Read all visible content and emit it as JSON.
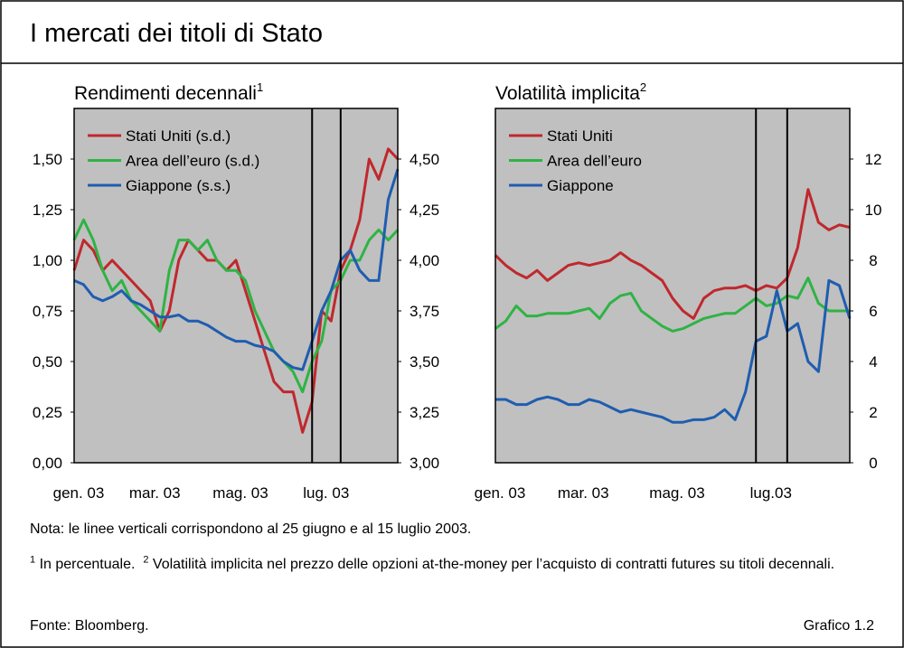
{
  "title": "I mercati dei titoli di Stato",
  "chart_data": [
    {
      "type": "line",
      "subtitle": "Rendimenti decennali",
      "subtitle_note": "1",
      "categories": [
        "gen. 03",
        null,
        null,
        null,
        null,
        null,
        null,
        null,
        "mar. 03",
        null,
        null,
        null,
        null,
        null,
        null,
        null,
        null,
        "mag. 03",
        null,
        null,
        null,
        null,
        null,
        null,
        null,
        null,
        "lug. 03",
        null,
        null,
        null,
        null,
        null,
        null,
        null,
        null
      ],
      "series": [
        {
          "name": "Stati Uniti (s.d.)",
          "color": "#c0282d",
          "axis": "y2",
          "values": [
            3.95,
            4.1,
            4.05,
            3.95,
            4.0,
            3.95,
            3.9,
            3.85,
            3.8,
            3.65,
            3.75,
            4.0,
            4.1,
            4.05,
            4.0,
            4.0,
            3.95,
            4.0,
            3.85,
            3.7,
            3.55,
            3.4,
            3.35,
            3.35,
            3.15,
            3.3,
            3.75,
            3.7,
            3.95,
            4.05,
            4.2,
            4.5,
            4.4,
            4.55,
            4.5
          ]
        },
        {
          "name": "Area dell’euro (s.d.)",
          "color": "#2fb344",
          "axis": "y2",
          "values": [
            4.1,
            4.2,
            4.1,
            3.95,
            3.85,
            3.9,
            3.8,
            3.75,
            3.7,
            3.65,
            3.95,
            4.1,
            4.1,
            4.05,
            4.1,
            4.0,
            3.95,
            3.95,
            3.9,
            3.75,
            3.65,
            3.55,
            3.5,
            3.45,
            3.35,
            3.5,
            3.6,
            3.85,
            3.9,
            4.0,
            4.0,
            4.1,
            4.15,
            4.1,
            4.15
          ]
        },
        {
          "name": "Giappone (s.s.)",
          "color": "#1f5db0",
          "values": [
            0.9,
            0.88,
            0.82,
            0.8,
            0.82,
            0.85,
            0.8,
            0.78,
            0.75,
            0.72,
            0.72,
            0.73,
            0.7,
            0.7,
            0.68,
            0.65,
            0.62,
            0.6,
            0.6,
            0.58,
            0.57,
            0.55,
            0.5,
            0.47,
            0.46,
            0.6,
            0.75,
            0.85,
            1.0,
            1.05,
            0.95,
            0.9,
            0.9,
            1.3,
            1.45
          ]
        }
      ],
      "ylim": [
        0,
        1.75
      ],
      "yticks": [
        {
          "value": 0,
          "label": "0,00"
        },
        {
          "value": 0.25,
          "label": "0,25"
        },
        {
          "value": 0.5,
          "label": "0,50"
        },
        {
          "value": 0.75,
          "label": "0,75"
        },
        {
          "value": 1,
          "label": "1,00"
        },
        {
          "value": 1.25,
          "label": "1,25"
        },
        {
          "value": 1.5,
          "label": "1,50"
        }
      ],
      "y2lim": [
        3,
        4.75
      ],
      "y2ticks": [
        {
          "value": 3,
          "label": "3,00"
        },
        {
          "value": 3.25,
          "label": "3,25"
        },
        {
          "value": 3.5,
          "label": "3,50"
        },
        {
          "value": 3.75,
          "label": "3,75"
        },
        {
          "value": 4,
          "label": "4,00"
        },
        {
          "value": 4.25,
          "label": "4,25"
        },
        {
          "value": 4.5,
          "label": "4,50"
        }
      ],
      "vlines": [
        25,
        28
      ],
      "grid": false,
      "legend": "upper left"
    },
    {
      "type": "line",
      "subtitle": "Volatilità implicita",
      "subtitle_note": "2",
      "categories": [
        "gen. 03",
        null,
        null,
        null,
        null,
        null,
        null,
        null,
        "mar. 03",
        null,
        null,
        null,
        null,
        null,
        null,
        null,
        null,
        "mag. 03",
        null,
        null,
        null,
        null,
        null,
        null,
        null,
        null,
        "lug.03",
        null,
        null,
        null,
        null,
        null,
        null,
        null,
        null
      ],
      "series": [
        {
          "name": "Stati Uniti",
          "color": "#c0282d",
          "values": [
            8.2,
            7.8,
            7.5,
            7.3,
            7.6,
            7.2,
            7.5,
            7.8,
            7.9,
            7.8,
            7.9,
            8.0,
            8.3,
            8.0,
            7.8,
            7.5,
            7.2,
            6.5,
            6.0,
            5.7,
            6.5,
            6.8,
            6.9,
            6.9,
            7.0,
            6.8,
            7.0,
            6.9,
            7.3,
            8.5,
            10.8,
            9.5,
            9.2,
            9.4,
            9.3
          ]
        },
        {
          "name": "Area dell’euro",
          "color": "#2fb344",
          "values": [
            5.3,
            5.6,
            6.2,
            5.8,
            5.8,
            5.9,
            5.9,
            5.9,
            6.0,
            6.1,
            5.7,
            6.3,
            6.6,
            6.7,
            6.0,
            5.7,
            5.4,
            5.2,
            5.3,
            5.5,
            5.7,
            5.8,
            5.9,
            5.9,
            6.2,
            6.5,
            6.2,
            6.3,
            6.6,
            6.5,
            7.3,
            6.3,
            6.0,
            6.0,
            6.0
          ]
        },
        {
          "name": "Giappone",
          "color": "#1f5db0",
          "values": [
            2.5,
            2.5,
            2.3,
            2.3,
            2.5,
            2.6,
            2.5,
            2.3,
            2.3,
            2.5,
            2.4,
            2.2,
            2.0,
            2.1,
            2.0,
            1.9,
            1.8,
            1.6,
            1.6,
            1.7,
            1.7,
            1.8,
            2.1,
            1.7,
            2.8,
            4.8,
            5.0,
            6.8,
            5.2,
            5.5,
            4.0,
            3.6,
            7.2,
            7.0,
            5.7
          ]
        }
      ],
      "ylim": [
        0,
        14
      ],
      "yticks": [
        0,
        2,
        4,
        6,
        8,
        10,
        12
      ],
      "yaxis_side": "right",
      "vlines": [
        25,
        28
      ],
      "grid": false,
      "legend": "upper left"
    }
  ],
  "note": "Nota: le linee verticali corrispondono al 25 giugno e al 15 luglio 2003.",
  "footnotes": [
    {
      "mark": "1",
      "text": "In percentuale."
    },
    {
      "mark": "2",
      "text": "Volatilità implicita nel prezzo delle opzioni at-the-money per l’acquisto di contratti futures su titoli decennali."
    }
  ],
  "source": "Fonte: Bloomberg.",
  "figure_label": "Grafico 1.2"
}
